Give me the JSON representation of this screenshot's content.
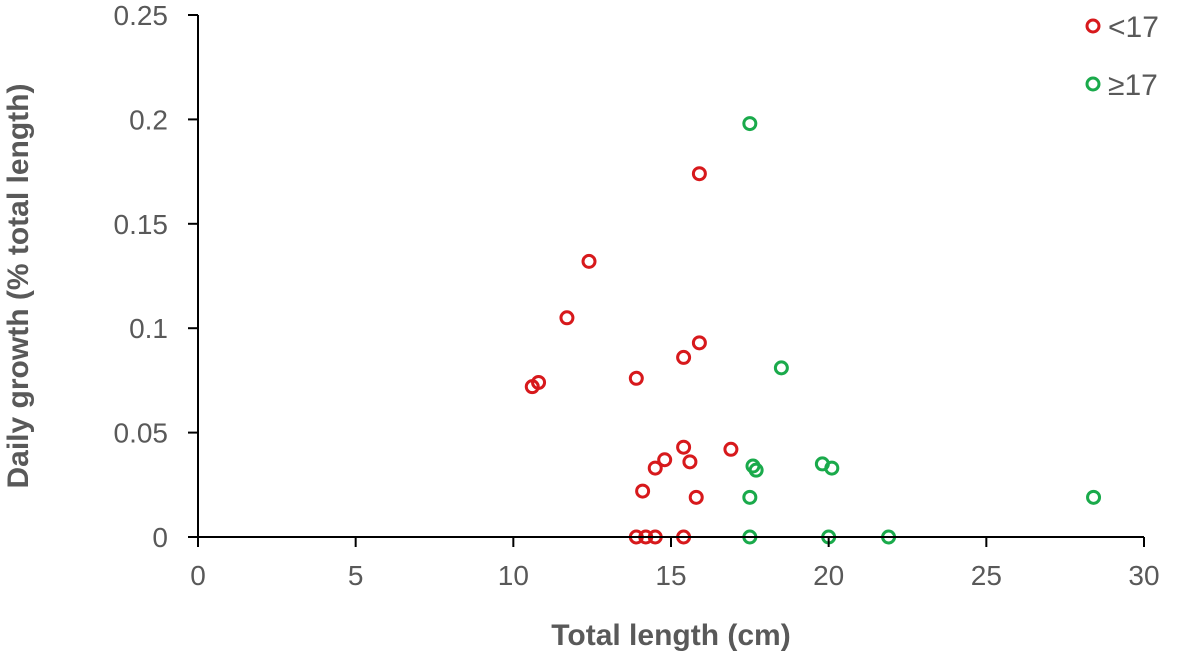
{
  "chart_data": {
    "type": "scatter",
    "xlabel": "Total length (cm)",
    "ylabel": "Daily growth (% total length)",
    "xlim": [
      0,
      30
    ],
    "ylim": [
      0,
      0.25
    ],
    "x_ticks": [
      0,
      5,
      10,
      15,
      20,
      25,
      30
    ],
    "y_ticks": [
      0,
      0.05,
      0.1,
      0.15,
      0.2,
      0.25
    ],
    "y_tick_labels": [
      "0",
      "0.05",
      "0.1",
      "0.15",
      "0.2",
      "0.25"
    ],
    "grid": false,
    "legend_position": "top-right",
    "series": [
      {
        "name": "<17",
        "color": "#d7191c",
        "points": [
          [
            10.6,
            0.072
          ],
          [
            10.8,
            0.074
          ],
          [
            11.7,
            0.105
          ],
          [
            12.4,
            0.132
          ],
          [
            13.9,
            0.076
          ],
          [
            14.1,
            0.022
          ],
          [
            14.5,
            0.033
          ],
          [
            14.8,
            0.037
          ],
          [
            15.4,
            0.043
          ],
          [
            15.6,
            0.036
          ],
          [
            15.4,
            0.086
          ],
          [
            15.8,
            0.019
          ],
          [
            15.9,
            0.093
          ],
          [
            15.9,
            0.174
          ],
          [
            16.9,
            0.042
          ],
          [
            13.9,
            0.0
          ],
          [
            14.2,
            0.0
          ],
          [
            14.5,
            0.0
          ],
          [
            15.4,
            0.0
          ]
        ]
      },
      {
        "name": "≥17",
        "color": "#1aaa4b",
        "points": [
          [
            17.5,
            0.198
          ],
          [
            18.5,
            0.081
          ],
          [
            17.6,
            0.034
          ],
          [
            17.7,
            0.032
          ],
          [
            17.5,
            0.019
          ],
          [
            19.8,
            0.035
          ],
          [
            20.1,
            0.033
          ],
          [
            28.4,
            0.019
          ],
          [
            17.5,
            0.0
          ],
          [
            20.0,
            0.0
          ],
          [
            21.9,
            0.0
          ]
        ]
      }
    ]
  }
}
